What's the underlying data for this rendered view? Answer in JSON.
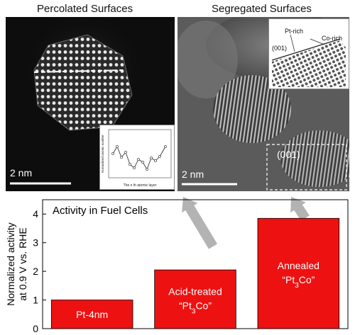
{
  "figure": {
    "left_title": "Percolated Surfaces",
    "right_title": "Segregated Surfaces",
    "left_scale": "2 nm",
    "right_scale": "2 nm",
    "right_inset_labels": {
      "pt_rich": "Pt-rich",
      "co_rich": "Co-rich",
      "facet": "(001)"
    },
    "right_box_label": "(001)",
    "left_inset": {
      "xlabel": "The n th atomic layer",
      "ylabel": "Normalized atomic number"
    }
  },
  "chart_data": {
    "type": "bar",
    "title": "Activity in Fuel Cells",
    "ylabel_line1": "Normalized activity",
    "ylabel_line2": "at 0.9 V vs. RHE",
    "ylim": [
      0,
      4.5
    ],
    "yticks": [
      "0",
      "1",
      "2",
      "3",
      "4"
    ],
    "categories": [
      {
        "line1": "Pt-4nm",
        "line2": "",
        "sub": ""
      },
      {
        "line1": "Acid-treated",
        "line2": "“Pt",
        "sub": "3",
        "tail": "Co”"
      },
      {
        "line1": "Annealed",
        "line2": "“Pt",
        "sub": "3",
        "tail": "Co”"
      }
    ],
    "values": [
      1.0,
      2.05,
      3.85
    ],
    "colors": {
      "bar": "#ee1111",
      "arrow": "#b3b3b3"
    }
  }
}
